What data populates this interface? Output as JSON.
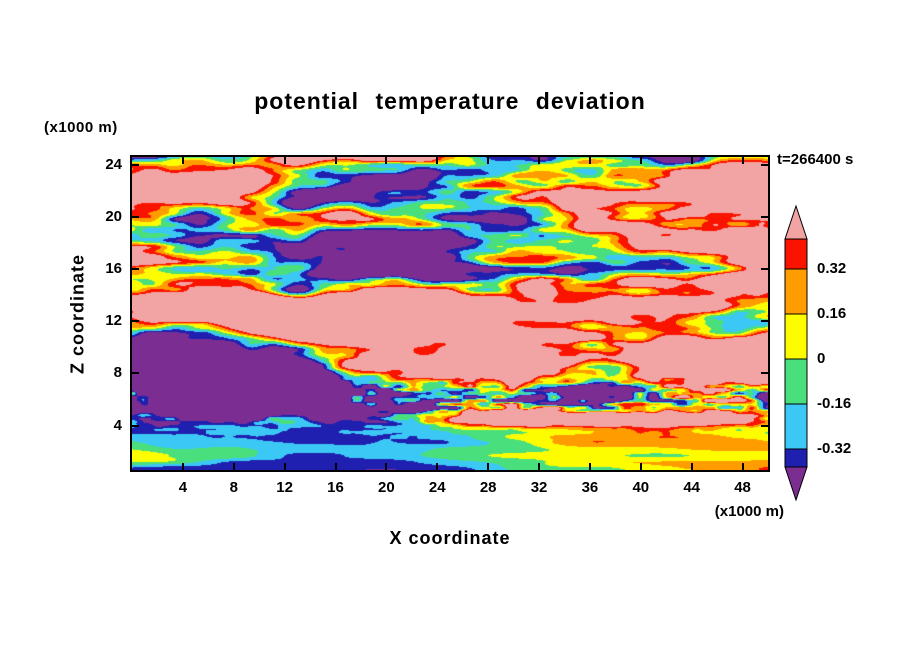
{
  "title": "potential temperature deviation",
  "timestamp": "t=266400 s",
  "axes": {
    "x": {
      "label": "X coordinate",
      "unit": "(x1000 m)",
      "ticks": [
        4,
        8,
        12,
        16,
        20,
        24,
        28,
        32,
        36,
        40,
        44,
        48
      ]
    },
    "z": {
      "label": "Z coordinate",
      "unit": "(x1000 m)",
      "ticks": [
        24,
        20,
        16,
        12,
        8,
        4
      ]
    }
  },
  "colorbar": {
    "labels": [
      "0.32",
      "0.16",
      "0",
      "-0.16",
      "-0.32"
    ]
  },
  "chart_data": {
    "type": "heatmap",
    "title": "potential temperature deviation",
    "xlabel": "X coordinate (x1000 m)",
    "ylabel": "Z coordinate (x1000 m)",
    "xlim": [
      0,
      50
    ],
    "ylim": [
      0,
      25
    ],
    "time_label": "t=266400 s",
    "levels": [
      -0.48,
      -0.32,
      -0.16,
      0,
      0.16,
      0.32,
      0.48
    ],
    "colorbar_labeled_levels": [
      0.32,
      0.16,
      0,
      -0.16,
      -0.32
    ],
    "colors_low_to_high": [
      "#7b2d92",
      "#2020b0",
      "#3cc8f5",
      "#4adf7d",
      "#fdfd00",
      "#ff9c00",
      "#fa1400",
      "#f2a3a3"
    ],
    "description": "Filled-contour field of potential temperature deviation, saturating beyond +/-0.48 (salmon pink high, purple low). Turbulent horizontally-elongated streaks above z~5 km, a strong positive salmon strip near z~4.5 km, and a smoother boundary layer of green/cyan/yellow/orange below z~4 km."
  }
}
